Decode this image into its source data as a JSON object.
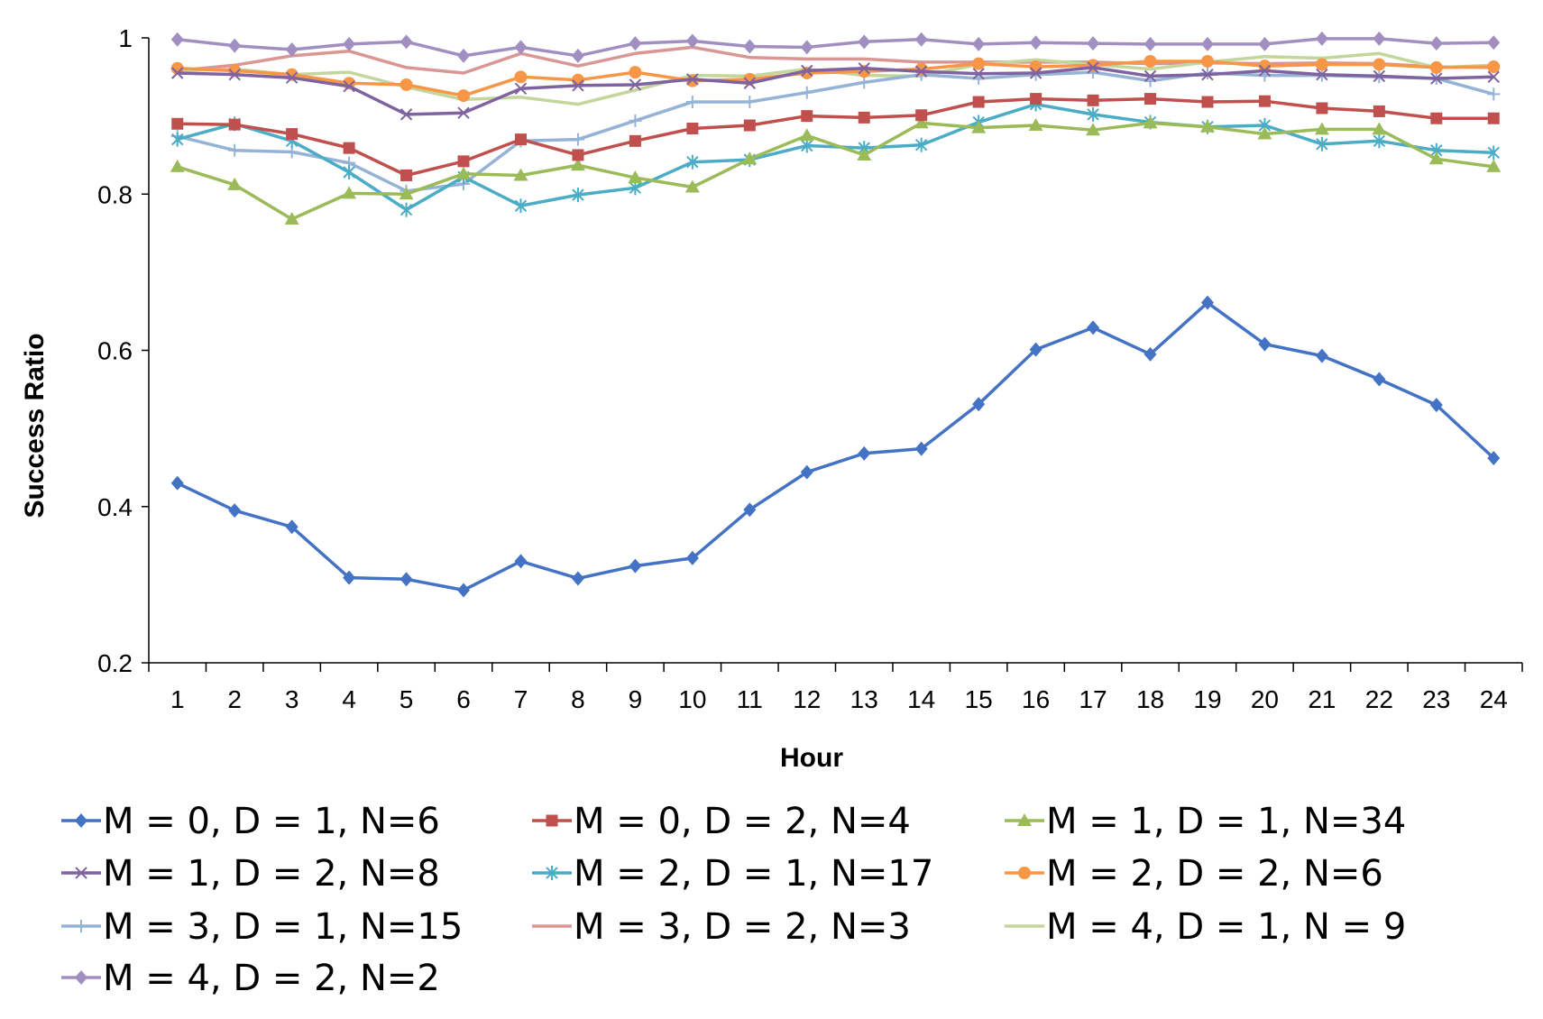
{
  "chart_data": {
    "type": "line",
    "title": "",
    "xlabel": "Hour",
    "ylabel": "Success Ratio",
    "ylim": [
      0.2,
      1
    ],
    "yticks": [
      0.2,
      0.4,
      0.6,
      0.8,
      1
    ],
    "ytick_labels": [
      "0.2",
      "0.4",
      "0.6",
      "0.8",
      "1"
    ],
    "categories": [
      "1",
      "2",
      "3",
      "4",
      "5",
      "6",
      "7",
      "8",
      "9",
      "10",
      "11",
      "12",
      "13",
      "14",
      "15",
      "16",
      "17",
      "18",
      "19",
      "20",
      "21",
      "22",
      "23",
      "24"
    ],
    "grid": false,
    "legend_position": "bottom",
    "series": [
      {
        "name": "M = 0, D = 1, N=6",
        "color": "#4472C4",
        "marker": "diamond",
        "values": [
          0.43,
          0.395,
          0.374,
          0.309,
          0.307,
          0.293,
          0.33,
          0.308,
          0.324,
          0.334,
          0.396,
          0.444,
          0.468,
          0.474,
          0.531,
          0.601,
          0.629,
          0.595,
          0.661,
          0.608,
          0.593,
          0.563,
          0.53,
          0.462
        ]
      },
      {
        "name": "M = 0, D = 2, N=4",
        "color": "#C0504D",
        "marker": "square",
        "values": [
          0.89,
          0.889,
          0.877,
          0.859,
          0.824,
          0.842,
          0.87,
          0.85,
          0.868,
          0.884,
          0.888,
          0.9,
          0.898,
          0.901,
          0.918,
          0.922,
          0.92,
          0.922,
          0.918,
          0.919,
          0.91,
          0.906,
          0.897,
          0.897
        ]
      },
      {
        "name": "M = 1, D = 1, N=34",
        "color": "#9BBB59",
        "marker": "triangle",
        "values": [
          0.835,
          0.812,
          0.768,
          0.801,
          0.8,
          0.826,
          0.824,
          0.837,
          0.821,
          0.809,
          0.845,
          0.875,
          0.85,
          0.891,
          0.885,
          0.888,
          0.882,
          0.891,
          0.886,
          0.877,
          0.883,
          0.883,
          0.845,
          0.835
        ]
      },
      {
        "name": "M = 1, D = 2,  N=8",
        "color": "#7F63A1",
        "marker": "x",
        "values": [
          0.955,
          0.953,
          0.949,
          0.938,
          0.902,
          0.904,
          0.935,
          0.939,
          0.94,
          0.947,
          0.942,
          0.958,
          0.961,
          0.957,
          0.954,
          0.955,
          0.962,
          0.951,
          0.953,
          0.958,
          0.953,
          0.951,
          0.948,
          0.95
        ]
      },
      {
        "name": "M = 2, D = 1, N=17",
        "color": "#4BACC6",
        "marker": "star",
        "values": [
          0.87,
          0.89,
          0.868,
          0.828,
          0.78,
          0.822,
          0.785,
          0.799,
          0.808,
          0.841,
          0.844,
          0.862,
          0.859,
          0.863,
          0.892,
          0.915,
          0.902,
          0.892,
          0.886,
          0.888,
          0.864,
          0.868,
          0.856,
          0.853
        ]
      },
      {
        "name": "M = 2, D = 2, N=6",
        "color": "#F79646",
        "marker": "circle",
        "values": [
          0.961,
          0.958,
          0.953,
          0.942,
          0.94,
          0.926,
          0.95,
          0.946,
          0.956,
          0.945,
          0.947,
          0.955,
          0.957,
          0.96,
          0.967,
          0.963,
          0.965,
          0.97,
          0.97,
          0.964,
          0.966,
          0.966,
          0.962,
          0.963
        ]
      },
      {
        "name": "M = 3, D = 1, N=15",
        "color": "#95B3D7",
        "marker": "plus",
        "values": [
          0.874,
          0.856,
          0.854,
          0.84,
          0.804,
          0.813,
          0.868,
          0.87,
          0.894,
          0.918,
          0.918,
          0.93,
          0.943,
          0.953,
          0.948,
          0.953,
          0.956,
          0.945,
          0.955,
          0.952,
          0.952,
          0.95,
          0.948,
          0.928
        ]
      },
      {
        "name": "M = 3, D = 2, N=3",
        "color": "#D99694",
        "marker": "none",
        "values": [
          0.958,
          0.965,
          0.977,
          0.983,
          0.962,
          0.955,
          0.98,
          0.964,
          0.98,
          0.988,
          0.975,
          0.973,
          0.973,
          0.969,
          0.969,
          0.969,
          0.969,
          0.967,
          0.968,
          0.967,
          0.968,
          0.967,
          0.963,
          0.962
        ]
      },
      {
        "name": "M = 4, D = 1, N = 9",
        "color": "#C3D69B",
        "marker": "none",
        "values": [
          0.958,
          0.96,
          0.953,
          0.956,
          0.937,
          0.921,
          0.924,
          0.915,
          0.933,
          0.952,
          0.951,
          0.96,
          0.952,
          0.951,
          0.966,
          0.972,
          0.966,
          0.96,
          0.969,
          0.976,
          0.974,
          0.98,
          0.962,
          0.965
        ]
      },
      {
        "name": "M = 4, D = 2, N=2",
        "color": "#A28FC2",
        "marker": "diamond",
        "values": [
          0.998,
          0.99,
          0.985,
          0.992,
          0.995,
          0.977,
          0.988,
          0.977,
          0.993,
          0.996,
          0.989,
          0.988,
          0.995,
          0.998,
          0.992,
          0.994,
          0.993,
          0.992,
          0.992,
          0.992,
          0.999,
          0.999,
          0.993,
          0.994
        ]
      }
    ]
  }
}
